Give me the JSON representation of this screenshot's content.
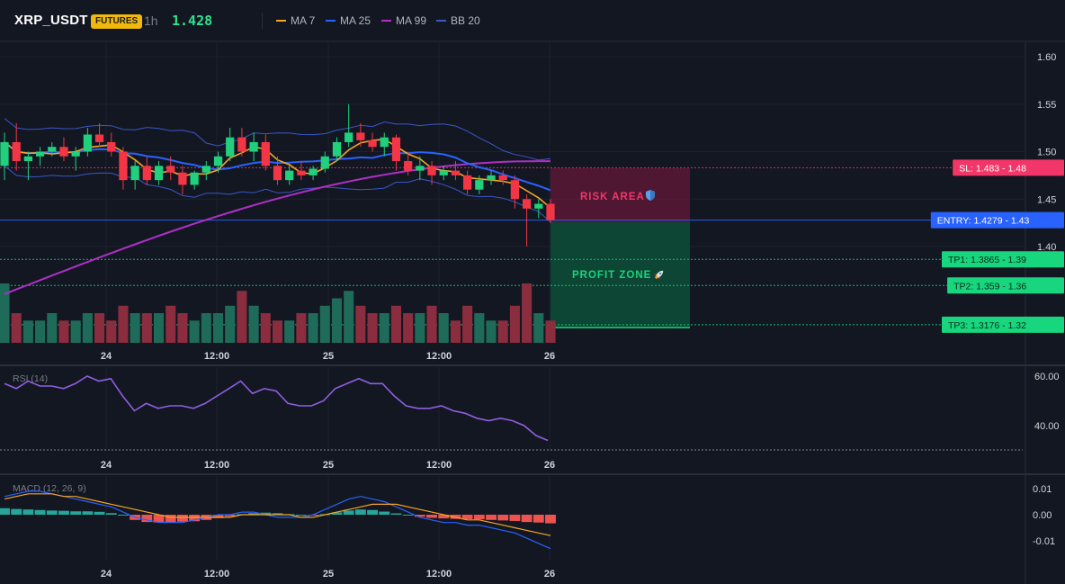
{
  "header": {
    "symbol": "XRP_USDT",
    "badge": "FUTURES",
    "timeframe": "1h",
    "price": "1.428",
    "indicators": [
      {
        "label": "MA 7",
        "color": "#f5a623"
      },
      {
        "label": "MA 25",
        "color": "#2962ff"
      },
      {
        "label": "MA 99",
        "color": "#b02fc6"
      },
      {
        "label": "BB 20",
        "color": "#3b57c8"
      }
    ]
  },
  "price_axis": [
    "1.60",
    "1.55",
    "1.50",
    "1.45",
    "1.40"
  ],
  "time_axis": [
    "24",
    "12:00",
    "25",
    "12:00",
    "26"
  ],
  "trade": {
    "risk_label": "RISK AREA",
    "profit_label": "PROFIT ZONE",
    "risk_icon": "shield-icon",
    "profit_icon": "rocket-icon",
    "levels": [
      {
        "key": "sl",
        "value": 1.483,
        "label": "SL: 1.483",
        "short": "1.48",
        "color": "#f23669"
      },
      {
        "key": "entry",
        "value": 1.4279,
        "label": "ENTRY: 1.4279",
        "short": "1.43",
        "color": "#2962ff"
      },
      {
        "key": "tp1",
        "value": 1.3865,
        "label": "TP1: 1.3865",
        "short": "1.39",
        "color": "#17d67d"
      },
      {
        "key": "tp2",
        "value": 1.359,
        "label": "TP2: 1.359",
        "short": "1.36",
        "color": "#17d67d"
      },
      {
        "key": "tp3",
        "value": 1.3176,
        "label": "TP3: 1.3176",
        "short": "1.32",
        "color": "#17d67d"
      }
    ]
  },
  "rsi": {
    "label": "RSI (14)",
    "axis": [
      "60.00",
      "40.00"
    ]
  },
  "macd": {
    "label": "MACD (12, 26, 9)",
    "axis": [
      "0.01",
      "0.00",
      "-0.01"
    ]
  },
  "colors": {
    "up": "#21d07d",
    "down": "#f23645",
    "vol_up": "#1f6b5a",
    "vol_down": "#8a2d3f"
  },
  "chart_data": {
    "type": "candlestick",
    "x_labels": [
      "24",
      "12:00",
      "25",
      "12:00",
      "26"
    ],
    "y_range": [
      1.3,
      1.6
    ],
    "ohlc": [
      [
        1.485,
        1.52,
        1.47,
        1.51
      ],
      [
        1.51,
        1.53,
        1.48,
        1.49
      ],
      [
        1.49,
        1.5,
        1.47,
        1.495
      ],
      [
        1.495,
        1.505,
        1.485,
        1.5
      ],
      [
        1.5,
        1.51,
        1.495,
        1.505
      ],
      [
        1.505,
        1.515,
        1.49,
        1.495
      ],
      [
        1.495,
        1.505,
        1.48,
        1.5
      ],
      [
        1.5,
        1.525,
        1.495,
        1.518
      ],
      [
        1.518,
        1.53,
        1.505,
        1.51
      ],
      [
        1.51,
        1.52,
        1.495,
        1.5
      ],
      [
        1.5,
        1.505,
        1.46,
        1.47
      ],
      [
        1.47,
        1.49,
        1.46,
        1.485
      ],
      [
        1.485,
        1.495,
        1.465,
        1.47
      ],
      [
        1.47,
        1.49,
        1.465,
        1.485
      ],
      [
        1.485,
        1.495,
        1.47,
        1.478
      ],
      [
        1.478,
        1.485,
        1.455,
        1.465
      ],
      [
        1.465,
        1.48,
        1.46,
        1.478
      ],
      [
        1.478,
        1.49,
        1.47,
        1.485
      ],
      [
        1.485,
        1.5,
        1.478,
        1.495
      ],
      [
        1.495,
        1.525,
        1.49,
        1.515
      ],
      [
        1.515,
        1.525,
        1.495,
        1.5
      ],
      [
        1.5,
        1.52,
        1.49,
        1.51
      ],
      [
        1.51,
        1.518,
        1.48,
        1.485
      ],
      [
        1.485,
        1.495,
        1.465,
        1.47
      ],
      [
        1.47,
        1.485,
        1.465,
        1.48
      ],
      [
        1.48,
        1.49,
        1.47,
        1.475
      ],
      [
        1.475,
        1.485,
        1.47,
        1.482
      ],
      [
        1.482,
        1.5,
        1.478,
        1.495
      ],
      [
        1.495,
        1.515,
        1.49,
        1.51
      ],
      [
        1.51,
        1.55,
        1.505,
        1.52
      ],
      [
        1.52,
        1.53,
        1.505,
        1.512
      ],
      [
        1.512,
        1.52,
        1.5,
        1.505
      ],
      [
        1.505,
        1.52,
        1.495,
        1.515
      ],
      [
        1.515,
        1.518,
        1.48,
        1.49
      ],
      [
        1.49,
        1.5,
        1.475,
        1.48
      ],
      [
        1.48,
        1.495,
        1.47,
        1.485
      ],
      [
        1.485,
        1.49,
        1.465,
        1.475
      ],
      [
        1.475,
        1.485,
        1.47,
        1.48
      ],
      [
        1.48,
        1.49,
        1.47,
        1.475
      ],
      [
        1.475,
        1.48,
        1.455,
        1.46
      ],
      [
        1.46,
        1.475,
        1.455,
        1.47
      ],
      [
        1.47,
        1.48,
        1.465,
        1.475
      ],
      [
        1.475,
        1.48,
        1.465,
        1.47
      ],
      [
        1.47,
        1.475,
        1.44,
        1.45
      ],
      [
        1.45,
        1.455,
        1.4,
        1.44
      ],
      [
        1.44,
        1.45,
        1.43,
        1.445
      ],
      [
        1.445,
        1.45,
        1.425,
        1.428
      ]
    ],
    "volume": [
      8,
      4,
      3,
      3,
      4,
      3,
      3,
      4,
      4,
      3,
      5,
      4,
      4,
      4,
      5,
      4,
      3,
      4,
      4,
      5,
      7,
      5,
      4,
      3,
      3,
      4,
      4,
      5,
      6,
      7,
      5,
      4,
      4,
      5,
      4,
      4,
      5,
      4,
      3,
      5,
      4,
      3,
      3,
      5,
      8,
      4,
      3
    ],
    "rsi": [
      57,
      55,
      58,
      56,
      56,
      55,
      57,
      60,
      58,
      59,
      52,
      46,
      49,
      47,
      48,
      48,
      47,
      49,
      52,
      55,
      58,
      53,
      55,
      54,
      49,
      48,
      48,
      50,
      55,
      57,
      59,
      57,
      57,
      52,
      48,
      47,
      47,
      48,
      46,
      45,
      43,
      42,
      43,
      42,
      40,
      36,
      34
    ],
    "macd_hist": [
      0.0025,
      0.0022,
      0.002,
      0.0018,
      0.0016,
      0.0015,
      0.0013,
      0.0013,
      0.0011,
      0.0006,
      0.0,
      -0.002,
      -0.0028,
      -0.003,
      -0.0029,
      -0.0027,
      -0.0025,
      -0.002,
      -0.0013,
      -0.0006,
      0.0002,
      0.0006,
      0.0008,
      0.0006,
      0.0002,
      0.0,
      -0.0002,
      0.0002,
      0.0009,
      0.0016,
      0.002,
      0.0018,
      0.0012,
      0.0005,
      0.0,
      -0.0008,
      -0.0012,
      -0.0014,
      -0.0016,
      -0.0017,
      -0.0018,
      -0.002,
      -0.0022,
      -0.0024,
      -0.0028,
      -0.003,
      -0.0033
    ],
    "macd_line": [
      0.007,
      0.008,
      0.009,
      0.009,
      0.008,
      0.007,
      0.006,
      0.005,
      0.004,
      0.003,
      0.001,
      -0.001,
      -0.002,
      -0.003,
      -0.003,
      -0.003,
      -0.002,
      -0.001,
      0.0,
      0.0,
      0.001,
      0.001,
      0.0,
      -0.001,
      -0.001,
      -0.001,
      0.0,
      0.002,
      0.004,
      0.006,
      0.007,
      0.006,
      0.005,
      0.003,
      0.001,
      -0.001,
      -0.002,
      -0.003,
      -0.003,
      -0.004,
      -0.004,
      -0.005,
      -0.006,
      -0.007,
      -0.009,
      -0.011,
      -0.013
    ],
    "signal_line": [
      0.006,
      0.007,
      0.008,
      0.008,
      0.008,
      0.007,
      0.007,
      0.006,
      0.005,
      0.004,
      0.003,
      0.002,
      0.001,
      0.0,
      -0.001,
      -0.001,
      -0.001,
      -0.001,
      -0.001,
      -0.001,
      0.0,
      0.0,
      0.0,
      0.0,
      0.0,
      -0.001,
      -0.001,
      0.0,
      0.001,
      0.002,
      0.003,
      0.004,
      0.004,
      0.004,
      0.003,
      0.002,
      0.001,
      0.0,
      -0.001,
      -0.002,
      -0.002,
      -0.003,
      -0.004,
      -0.005,
      -0.006,
      -0.007,
      -0.008
    ]
  }
}
